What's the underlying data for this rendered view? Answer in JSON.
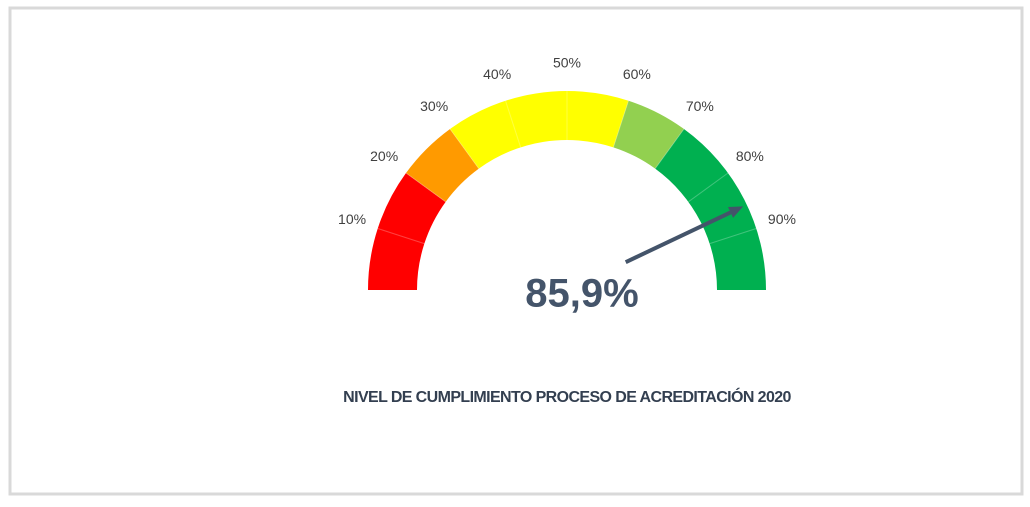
{
  "chart_data": {
    "type": "gauge",
    "title": "NIVEL DE CUMPLIMIENTO PROCESO DE ACREDITACIÓN 2020",
    "value": 85.9,
    "value_label": "85,9%",
    "lim": [
      0,
      100
    ],
    "ticks": [
      {
        "value": 10,
        "label": "10%"
      },
      {
        "value": 20,
        "label": "20%"
      },
      {
        "value": 30,
        "label": "30%"
      },
      {
        "value": 40,
        "label": "40%"
      },
      {
        "value": 50,
        "label": "50%"
      },
      {
        "value": 60,
        "label": "60%"
      },
      {
        "value": 70,
        "label": "70%"
      },
      {
        "value": 80,
        "label": "80%"
      },
      {
        "value": 90,
        "label": "90%"
      }
    ],
    "bands": [
      {
        "from": 0,
        "to": 20,
        "color": "#ff0000"
      },
      {
        "from": 20,
        "to": 30,
        "color": "#ff9a00"
      },
      {
        "from": 30,
        "to": 60,
        "color": "#ffff00"
      },
      {
        "from": 60,
        "to": 70,
        "color": "#92d050"
      },
      {
        "from": 70,
        "to": 100,
        "color": "#00b050"
      }
    ],
    "needle_color": "#44546a"
  }
}
